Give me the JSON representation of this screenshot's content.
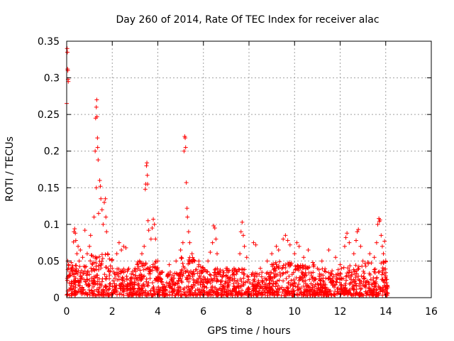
{
  "chart_data": {
    "type": "scatter",
    "title": "Day 260 of 2014, Rate Of TEC Index for receiver alac",
    "xlabel": "GPS time / hours",
    "ylabel": "ROTI / TECUs",
    "xlim": [
      0,
      16
    ],
    "ylim": [
      0,
      0.35
    ],
    "xticks": [
      0,
      2,
      4,
      6,
      8,
      10,
      12,
      14,
      16
    ],
    "yticks": [
      0,
      0.05,
      0.1,
      0.15,
      0.2,
      0.25,
      0.3,
      0.35
    ],
    "xtick_labels": [
      "0",
      "2",
      "4",
      "6",
      "8",
      "10",
      "12",
      "14",
      "16"
    ],
    "ytick_labels": [
      "0",
      "0.05",
      "0.1",
      "0.15",
      "0.2",
      "0.25",
      "0.3",
      "0.35"
    ],
    "grid": true,
    "marker": "+",
    "color": "#ff0000",
    "series": [
      {
        "name": "ROTI",
        "points": [
          [
            0.0,
            0.265
          ],
          [
            0.02,
            0.34
          ],
          [
            0.03,
            0.335
          ],
          [
            0.04,
            0.312
          ],
          [
            0.05,
            0.31
          ],
          [
            0.06,
            0.298
          ],
          [
            0.07,
            0.295
          ],
          [
            0.05,
            0.05
          ],
          [
            0.08,
            0.045
          ],
          [
            0.1,
            0.03
          ],
          [
            0.12,
            0.02
          ],
          [
            0.15,
            0.035
          ],
          [
            0.2,
            0.048
          ],
          [
            0.25,
            0.04
          ],
          [
            0.3,
            0.076
          ],
          [
            0.32,
            0.09
          ],
          [
            0.35,
            0.094
          ],
          [
            0.38,
            0.088
          ],
          [
            0.4,
            0.078
          ],
          [
            0.45,
            0.06
          ],
          [
            0.5,
            0.07
          ],
          [
            0.55,
            0.05
          ],
          [
            0.6,
            0.065
          ],
          [
            0.7,
            0.055
          ],
          [
            0.8,
            0.092
          ],
          [
            0.9,
            0.06
          ],
          [
            1.0,
            0.07
          ],
          [
            1.05,
            0.085
          ],
          [
            1.2,
            0.11
          ],
          [
            1.25,
            0.2
          ],
          [
            1.27,
            0.245
          ],
          [
            1.3,
            0.26
          ],
          [
            1.32,
            0.27
          ],
          [
            1.33,
            0.247
          ],
          [
            1.35,
            0.218
          ],
          [
            1.36,
            0.205
          ],
          [
            1.38,
            0.188
          ],
          [
            1.3,
            0.15
          ],
          [
            1.4,
            0.115
          ],
          [
            1.45,
            0.16
          ],
          [
            1.48,
            0.152
          ],
          [
            1.5,
            0.135
          ],
          [
            1.55,
            0.12
          ],
          [
            1.6,
            0.1
          ],
          [
            1.65,
            0.13
          ],
          [
            1.7,
            0.135
          ],
          [
            1.72,
            0.11
          ],
          [
            1.75,
            0.09
          ],
          [
            1.8,
            0.06
          ],
          [
            2.0,
            0.04
          ],
          [
            2.2,
            0.06
          ],
          [
            2.3,
            0.075
          ],
          [
            2.4,
            0.065
          ],
          [
            2.5,
            0.07
          ],
          [
            2.6,
            0.068
          ],
          [
            3.0,
            0.04
          ],
          [
            3.2,
            0.05
          ],
          [
            3.3,
            0.06
          ],
          [
            3.4,
            0.07
          ],
          [
            3.45,
            0.148
          ],
          [
            3.47,
            0.155
          ],
          [
            3.5,
            0.18
          ],
          [
            3.52,
            0.184
          ],
          [
            3.54,
            0.167
          ],
          [
            3.55,
            0.155
          ],
          [
            3.57,
            0.105
          ],
          [
            3.6,
            0.092
          ],
          [
            3.7,
            0.08
          ],
          [
            3.75,
            0.095
          ],
          [
            3.8,
            0.107
          ],
          [
            3.85,
            0.1
          ],
          [
            3.9,
            0.08
          ],
          [
            4.0,
            0.05
          ],
          [
            4.2,
            0.035
          ],
          [
            4.5,
            0.045
          ],
          [
            4.8,
            0.05
          ],
          [
            5.0,
            0.065
          ],
          [
            5.1,
            0.075
          ],
          [
            5.15,
            0.2
          ],
          [
            5.18,
            0.22
          ],
          [
            5.2,
            0.218
          ],
          [
            5.22,
            0.205
          ],
          [
            5.25,
            0.157
          ],
          [
            5.28,
            0.122
          ],
          [
            5.3,
            0.11
          ],
          [
            5.35,
            0.09
          ],
          [
            5.4,
            0.075
          ],
          [
            5.5,
            0.06
          ],
          [
            5.8,
            0.045
          ],
          [
            6.0,
            0.04
          ],
          [
            6.2,
            0.05
          ],
          [
            6.3,
            0.062
          ],
          [
            6.4,
            0.075
          ],
          [
            6.45,
            0.098
          ],
          [
            6.5,
            0.095
          ],
          [
            6.55,
            0.08
          ],
          [
            6.6,
            0.06
          ],
          [
            7.0,
            0.04
          ],
          [
            7.3,
            0.035
          ],
          [
            7.6,
            0.06
          ],
          [
            7.65,
            0.09
          ],
          [
            7.7,
            0.103
          ],
          [
            7.75,
            0.085
          ],
          [
            7.8,
            0.07
          ],
          [
            7.9,
            0.055
          ],
          [
            8.2,
            0.075
          ],
          [
            8.3,
            0.072
          ],
          [
            8.5,
            0.04
          ],
          [
            8.8,
            0.05
          ],
          [
            9.0,
            0.06
          ],
          [
            9.2,
            0.07
          ],
          [
            9.3,
            0.065
          ],
          [
            9.5,
            0.08
          ],
          [
            9.6,
            0.085
          ],
          [
            9.7,
            0.078
          ],
          [
            9.8,
            0.072
          ],
          [
            10.0,
            0.06
          ],
          [
            10.1,
            0.075
          ],
          [
            10.2,
            0.07
          ],
          [
            10.4,
            0.055
          ],
          [
            10.6,
            0.065
          ],
          [
            10.8,
            0.048
          ],
          [
            11.0,
            0.04
          ],
          [
            11.2,
            0.05
          ],
          [
            11.5,
            0.065
          ],
          [
            11.8,
            0.055
          ],
          [
            12.0,
            0.045
          ],
          [
            12.2,
            0.07
          ],
          [
            12.25,
            0.082
          ],
          [
            12.3,
            0.088
          ],
          [
            12.4,
            0.075
          ],
          [
            12.6,
            0.06
          ],
          [
            12.7,
            0.078
          ],
          [
            12.75,
            0.09
          ],
          [
            12.8,
            0.093
          ],
          [
            12.9,
            0.07
          ],
          [
            13.0,
            0.05
          ],
          [
            13.3,
            0.06
          ],
          [
            13.5,
            0.055
          ],
          [
            13.6,
            0.075
          ],
          [
            13.65,
            0.1
          ],
          [
            13.7,
            0.108
          ],
          [
            13.72,
            0.104
          ],
          [
            13.75,
            0.106
          ],
          [
            13.8,
            0.085
          ],
          [
            13.85,
            0.07
          ],
          [
            13.9,
            0.06
          ],
          [
            13.95,
            0.077
          ],
          [
            14.0,
            0.05
          ]
        ],
        "density_band": {
          "x_range": [
            0,
            14.1
          ],
          "bands": [
            {
              "x": [
                0.0,
                1.0
              ],
              "y_low": 0.003,
              "y_high": 0.045
            },
            {
              "x": [
                1.0,
                2.0
              ],
              "y_low": 0.003,
              "y_high": 0.06
            },
            {
              "x": [
                2.0,
                3.0
              ],
              "y_low": 0.003,
              "y_high": 0.04
            },
            {
              "x": [
                3.0,
                4.0
              ],
              "y_low": 0.003,
              "y_high": 0.05
            },
            {
              "x": [
                4.0,
                5.0
              ],
              "y_low": 0.003,
              "y_high": 0.035
            },
            {
              "x": [
                5.0,
                6.0
              ],
              "y_low": 0.003,
              "y_high": 0.055
            },
            {
              "x": [
                6.0,
                7.0
              ],
              "y_low": 0.003,
              "y_high": 0.04
            },
            {
              "x": [
                7.0,
                8.0
              ],
              "y_low": 0.003,
              "y_high": 0.04
            },
            {
              "x": [
                8.0,
                9.0
              ],
              "y_low": 0.003,
              "y_high": 0.035
            },
            {
              "x": [
                9.0,
                10.0
              ],
              "y_low": 0.003,
              "y_high": 0.05
            },
            {
              "x": [
                10.0,
                11.0
              ],
              "y_low": 0.003,
              "y_high": 0.045
            },
            {
              "x": [
                11.0,
                12.0
              ],
              "y_low": 0.003,
              "y_high": 0.04
            },
            {
              "x": [
                12.0,
                13.0
              ],
              "y_low": 0.003,
              "y_high": 0.045
            },
            {
              "x": [
                13.0,
                14.1
              ],
              "y_low": 0.003,
              "y_high": 0.05
            }
          ]
        }
      }
    ]
  }
}
